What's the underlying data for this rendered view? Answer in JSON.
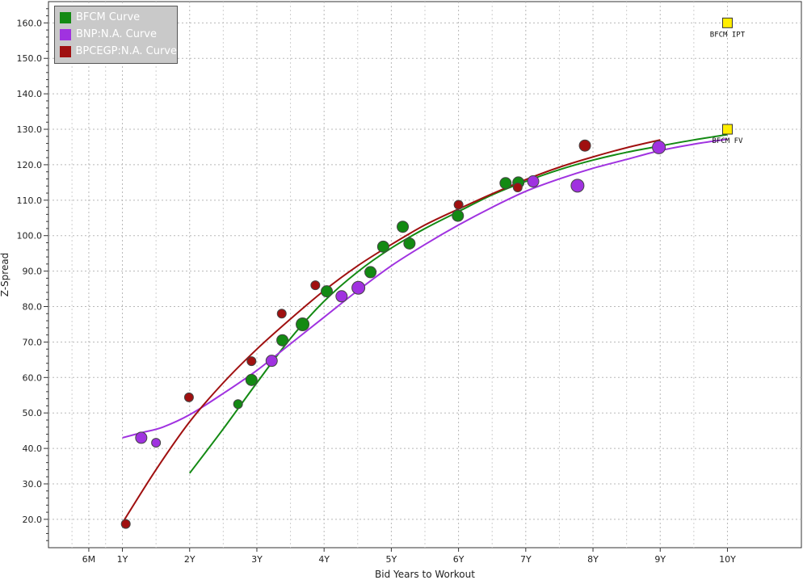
{
  "chart_data": {
    "type": "scatter",
    "xlabel": "Bid Years to Workout",
    "ylabel": "Z-Spread",
    "xlim": [
      -0.1,
      11.1
    ],
    "ylim": [
      12,
      166
    ],
    "x_ticks": [
      {
        "value": 0.5,
        "label": "6M"
      },
      {
        "value": 1,
        "label": "1Y"
      },
      {
        "value": 2,
        "label": "2Y"
      },
      {
        "value": 3,
        "label": "3Y"
      },
      {
        "value": 4,
        "label": "4Y"
      },
      {
        "value": 5,
        "label": "5Y"
      },
      {
        "value": 6,
        "label": "6Y"
      },
      {
        "value": 7,
        "label": "7Y"
      },
      {
        "value": 8,
        "label": "8Y"
      },
      {
        "value": 9,
        "label": "9Y"
      },
      {
        "value": 10,
        "label": "10Y"
      }
    ],
    "y_ticks": [
      {
        "value": 20,
        "label": "20.0"
      },
      {
        "value": 30,
        "label": "30.0"
      },
      {
        "value": 40,
        "label": "40.0"
      },
      {
        "value": 50,
        "label": "50.0"
      },
      {
        "value": 60,
        "label": "60.0"
      },
      {
        "value": 70,
        "label": "70.0"
      },
      {
        "value": 80,
        "label": "80.0"
      },
      {
        "value": 90,
        "label": "90.0"
      },
      {
        "value": 100,
        "label": "100.0"
      },
      {
        "value": 110,
        "label": "110.0"
      },
      {
        "value": 120,
        "label": "120.0"
      },
      {
        "value": 130,
        "label": "130.0"
      },
      {
        "value": 140,
        "label": "140.0"
      },
      {
        "value": 150,
        "label": "150.0"
      },
      {
        "value": 160,
        "label": "160.0"
      }
    ],
    "grid": true,
    "legend_position": "top-left",
    "series": [
      {
        "name": "BFCM Curve",
        "color": "#138a13",
        "points": [
          {
            "x": 2.72,
            "y": 52.5,
            "size": "s"
          },
          {
            "x": 2.92,
            "y": 59.3,
            "size": "m"
          },
          {
            "x": 3.38,
            "y": 70.5,
            "size": "m"
          },
          {
            "x": 3.68,
            "y": 75.0,
            "size": "l"
          },
          {
            "x": 4.04,
            "y": 84.3,
            "size": "m"
          },
          {
            "x": 4.69,
            "y": 89.7,
            "size": "m"
          },
          {
            "x": 4.88,
            "y": 96.9,
            "size": "m"
          },
          {
            "x": 5.17,
            "y": 102.5,
            "size": "m"
          },
          {
            "x": 5.27,
            "y": 97.8,
            "size": "m"
          },
          {
            "x": 5.99,
            "y": 105.6,
            "size": "m"
          },
          {
            "x": 6.7,
            "y": 114.8,
            "size": "m"
          },
          {
            "x": 6.89,
            "y": 115.0,
            "size": "m"
          }
        ],
        "curve": [
          [
            2.0,
            33.0
          ],
          [
            2.5,
            45.5
          ],
          [
            3.0,
            58.5
          ],
          [
            3.5,
            71.0
          ],
          [
            4.0,
            81.5
          ],
          [
            4.5,
            89.8
          ],
          [
            5.0,
            96.5
          ],
          [
            5.5,
            102.0
          ],
          [
            6.0,
            106.8
          ],
          [
            6.5,
            111.5
          ],
          [
            7.0,
            115.3
          ],
          [
            7.5,
            118.6
          ],
          [
            8.0,
            121.3
          ],
          [
            8.5,
            123.5
          ],
          [
            9.0,
            125.3
          ],
          [
            9.5,
            127.0
          ],
          [
            10.0,
            128.5
          ]
        ]
      },
      {
        "name": "BNP:N.A. Curve",
        "color": "#a032e0",
        "points": [
          {
            "x": 1.28,
            "y": 43.0,
            "size": "m"
          },
          {
            "x": 1.5,
            "y": 41.6,
            "size": "s"
          },
          {
            "x": 3.22,
            "y": 64.7,
            "size": "m"
          },
          {
            "x": 4.26,
            "y": 82.9,
            "size": "m"
          },
          {
            "x": 4.51,
            "y": 85.3,
            "size": "l"
          },
          {
            "x": 7.11,
            "y": 115.3,
            "size": "m"
          },
          {
            "x": 7.77,
            "y": 114.1,
            "size": "l"
          },
          {
            "x": 8.98,
            "y": 124.9,
            "size": "l"
          }
        ],
        "curve": [
          [
            1.0,
            43.0
          ],
          [
            1.3,
            44.5
          ],
          [
            1.6,
            46.0
          ],
          [
            2.0,
            49.5
          ],
          [
            2.5,
            55.5
          ],
          [
            3.0,
            62.0
          ],
          [
            3.5,
            69.5
          ],
          [
            4.0,
            77.0
          ],
          [
            4.5,
            84.5
          ],
          [
            5.0,
            91.5
          ],
          [
            5.5,
            97.5
          ],
          [
            6.0,
            103.0
          ],
          [
            6.5,
            108.0
          ],
          [
            7.0,
            112.5
          ],
          [
            7.5,
            116.0
          ],
          [
            8.0,
            119.0
          ],
          [
            8.5,
            121.5
          ],
          [
            9.0,
            124.0
          ],
          [
            9.5,
            125.8
          ],
          [
            10.0,
            127.2
          ]
        ]
      },
      {
        "name": "BPCEGP:N.A. Curve",
        "color": "#a01010",
        "points": [
          {
            "x": 1.05,
            "y": 18.7,
            "size": "s"
          },
          {
            "x": 1.99,
            "y": 54.4,
            "size": "s"
          },
          {
            "x": 2.92,
            "y": 64.6,
            "size": "s"
          },
          {
            "x": 3.37,
            "y": 78.0,
            "size": "s"
          },
          {
            "x": 3.87,
            "y": 86.0,
            "size": "s"
          },
          {
            "x": 6.0,
            "y": 108.7,
            "size": "s"
          },
          {
            "x": 6.88,
            "y": 113.6,
            "size": "s"
          },
          {
            "x": 7.88,
            "y": 125.4,
            "size": "m"
          }
        ],
        "curve": [
          [
            1.0,
            19.0
          ],
          [
            1.5,
            34.0
          ],
          [
            2.0,
            47.5
          ],
          [
            2.5,
            58.5
          ],
          [
            3.0,
            68.0
          ],
          [
            3.5,
            76.5
          ],
          [
            4.0,
            84.5
          ],
          [
            4.5,
            91.5
          ],
          [
            5.0,
            97.5
          ],
          [
            5.5,
            103.0
          ],
          [
            6.0,
            107.5
          ],
          [
            6.5,
            111.8
          ],
          [
            7.0,
            115.8
          ],
          [
            7.5,
            119.3
          ],
          [
            8.0,
            122.2
          ],
          [
            8.5,
            124.8
          ],
          [
            9.0,
            127.0
          ]
        ]
      }
    ],
    "annotations": [
      {
        "label": "BFCM IPT",
        "x": 10.0,
        "y": 160.0,
        "color": "#ffee00"
      },
      {
        "label": "BFCM FV",
        "x": 10.0,
        "y": 130.0,
        "color": "#ffee00"
      }
    ]
  }
}
